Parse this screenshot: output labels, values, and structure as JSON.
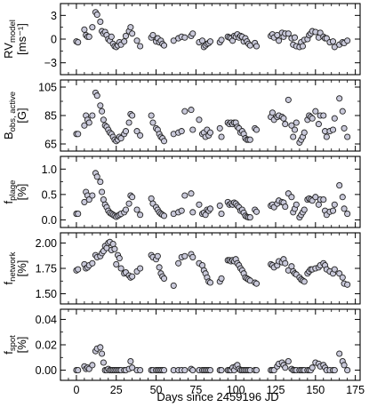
{
  "chart_data": [
    {
      "type": "scatter",
      "ylabel_main": "RV",
      "ylabel_sub": "model",
      "ylabel_unit": "[ms⁻¹]",
      "ylim": [
        -4.5,
        4.5
      ],
      "yticks": [
        -3,
        0,
        3
      ],
      "yticklabels": [
        "−3",
        "0",
        "3"
      ],
      "xlim": [
        -10,
        178
      ],
      "x": [
        0,
        1,
        5,
        6,
        7,
        8,
        10,
        12,
        13,
        15,
        16,
        17,
        18,
        19,
        20,
        21,
        22,
        23,
        24,
        25,
        26,
        27,
        28,
        30,
        31,
        33,
        34,
        35,
        38,
        40,
        47,
        48,
        50,
        51,
        52,
        53,
        54,
        55,
        61,
        64,
        66,
        68,
        72,
        73,
        77,
        79,
        80,
        81,
        82,
        83,
        84,
        90,
        91,
        95,
        96,
        97,
        98,
        99,
        100,
        101,
        102,
        103,
        104,
        105,
        106,
        107,
        108,
        109,
        112,
        113,
        122,
        123,
        124,
        126,
        127,
        129,
        130,
        131,
        133,
        135,
        136,
        137,
        138,
        140,
        141,
        142,
        143,
        145,
        146,
        147,
        148,
        150,
        152,
        153,
        155,
        156,
        157,
        159,
        161,
        162,
        165,
        167,
        168,
        170
      ],
      "y": [
        -0.3,
        -0.4,
        1.2,
        0.5,
        0.3,
        0.3,
        1.5,
        3.4,
        3.1,
        2.2,
        1.0,
        0.7,
        0.9,
        0.5,
        0.0,
        -0.2,
        0.3,
        -0.6,
        -0.9,
        -1.0,
        -0.8,
        -0.4,
        -0.7,
        -0.3,
        0.4,
        1.0,
        1.5,
        0.7,
        -0.2,
        -0.9,
        0.2,
        0.5,
        -0.3,
        0.1,
        -0.4,
        -0.2,
        -0.6,
        -0.8,
        -0.2,
        0.1,
        0.3,
        0.2,
        0.4,
        0.7,
        -0.4,
        -0.2,
        -1.0,
        -0.8,
        -0.6,
        -0.5,
        -0.3,
        -0.4,
        -0.1,
        0.3,
        0.2,
        0.1,
        -0.2,
        0.4,
        0.3,
        0.6,
        0.2,
        0.4,
        0.3,
        -0.3,
        0.1,
        -0.3,
        -0.6,
        -0.8,
        -0.5,
        -0.9,
        0.4,
        0.6,
        0.2,
        0.5,
        -0.2,
        0.8,
        0.3,
        0.7,
        0.7,
        0.1,
        -0.7,
        0.2,
        -0.9,
        -1.0,
        -0.4,
        -0.9,
        -0.1,
        0.0,
        0.5,
        0.7,
        1.0,
        0.9,
        0.2,
        0.8,
        0.3,
        0.1,
        0.1,
        -0.4,
        -0.3,
        -1.0,
        -0.7,
        -0.4,
        -0.5,
        -0.2
      ]
    },
    {
      "type": "scatter",
      "ylabel_main": "B",
      "ylabel_sub": "obs, active",
      "ylabel_unit": "[G]",
      "ylim": [
        60,
        110
      ],
      "yticks": [
        65,
        85,
        105
      ],
      "yticklabels": [
        "65",
        "85",
        "105"
      ],
      "xlim": [
        -10,
        178
      ],
      "x": [
        0,
        1,
        5,
        6,
        7,
        8,
        10,
        12,
        13,
        15,
        16,
        17,
        18,
        19,
        20,
        21,
        22,
        23,
        24,
        25,
        26,
        27,
        28,
        30,
        31,
        33,
        34,
        35,
        38,
        40,
        47,
        48,
        50,
        51,
        52,
        53,
        54,
        55,
        61,
        64,
        66,
        68,
        72,
        73,
        77,
        79,
        80,
        81,
        82,
        83,
        84,
        90,
        91,
        95,
        96,
        97,
        98,
        99,
        100,
        101,
        102,
        103,
        104,
        105,
        106,
        107,
        108,
        109,
        112,
        113,
        122,
        123,
        124,
        126,
        127,
        129,
        130,
        131,
        133,
        135,
        136,
        137,
        138,
        140,
        141,
        142,
        143,
        145,
        146,
        147,
        148,
        150,
        152,
        153,
        155,
        156,
        157,
        159,
        161,
        162,
        165,
        167,
        168,
        170
      ],
      "y": [
        72,
        72,
        78,
        85,
        82,
        80,
        85,
        101,
        99,
        92,
        88,
        82,
        78,
        77,
        75,
        73,
        72,
        70,
        68,
        67,
        68,
        70,
        69,
        72,
        74,
        80,
        86,
        85,
        74,
        71,
        85,
        80,
        76,
        75,
        72,
        70,
        69,
        67,
        72,
        73,
        74,
        88,
        89,
        75,
        82,
        72,
        73,
        70,
        75,
        71,
        73,
        76,
        70,
        80,
        79,
        80,
        79,
        80,
        80,
        77,
        76,
        73,
        74,
        72,
        69,
        68,
        68,
        68,
        76,
        75,
        84,
        87,
        82,
        84,
        85,
        84,
        83,
        79,
        96,
        78,
        70,
        75,
        80,
        66,
        68,
        70,
        73,
        82,
        85,
        84,
        83,
        88,
        79,
        85,
        85,
        74,
        70,
        74,
        75,
        83,
        97,
        88,
        76,
        70
      ]
    },
    {
      "type": "scatter",
      "ylabel_main": "f",
      "ylabel_sub": "plage",
      "ylabel_unit": "[%]",
      "ylim": [
        -0.15,
        1.25
      ],
      "yticks": [
        0.0,
        0.5,
        1.0
      ],
      "yticklabels": [
        "0.0",
        "0.5",
        "1.0"
      ],
      "xlim": [
        -10,
        178
      ],
      "x": [
        0,
        1,
        5,
        6,
        7,
        8,
        10,
        12,
        13,
        15,
        16,
        17,
        18,
        19,
        20,
        21,
        22,
        23,
        24,
        25,
        26,
        27,
        28,
        30,
        31,
        33,
        34,
        35,
        38,
        40,
        47,
        48,
        50,
        51,
        52,
        53,
        54,
        55,
        61,
        64,
        66,
        68,
        72,
        73,
        77,
        79,
        80,
        81,
        82,
        83,
        84,
        90,
        91,
        95,
        96,
        97,
        98,
        99,
        100,
        101,
        102,
        103,
        104,
        105,
        106,
        107,
        108,
        109,
        112,
        113,
        122,
        123,
        124,
        126,
        127,
        129,
        130,
        131,
        133,
        135,
        136,
        137,
        138,
        140,
        141,
        142,
        143,
        145,
        146,
        147,
        148,
        150,
        152,
        153,
        155,
        156,
        157,
        159,
        161,
        162,
        165,
        167,
        168,
        170
      ],
      "y": [
        0.12,
        0.12,
        0.35,
        0.55,
        0.48,
        0.4,
        0.48,
        0.92,
        0.85,
        0.75,
        0.55,
        0.4,
        0.3,
        0.25,
        0.18,
        0.14,
        0.12,
        0.1,
        0.08,
        0.06,
        0.08,
        0.1,
        0.12,
        0.15,
        0.2,
        0.32,
        0.48,
        0.45,
        0.2,
        0.1,
        0.42,
        0.32,
        0.25,
        0.2,
        0.15,
        0.12,
        0.1,
        0.08,
        0.12,
        0.15,
        0.18,
        0.48,
        0.52,
        0.15,
        0.3,
        0.12,
        0.14,
        0.1,
        0.2,
        0.18,
        0.22,
        0.28,
        0.12,
        0.35,
        0.3,
        0.32,
        0.3,
        0.34,
        0.32,
        0.28,
        0.25,
        0.18,
        0.2,
        0.14,
        0.08,
        0.06,
        0.05,
        0.05,
        0.2,
        0.16,
        0.28,
        0.3,
        0.25,
        0.32,
        0.38,
        0.35,
        0.34,
        0.26,
        0.52,
        0.45,
        0.15,
        0.22,
        0.3,
        0.05,
        0.1,
        0.15,
        0.2,
        0.4,
        0.42,
        0.4,
        0.38,
        0.45,
        0.3,
        0.4,
        0.4,
        0.18,
        0.1,
        0.16,
        0.18,
        0.3,
        0.68,
        0.45,
        0.22,
        0.12
      ]
    },
    {
      "type": "scatter",
      "ylabel_main": "f",
      "ylabel_sub": "network",
      "ylabel_unit": "[%]",
      "ylim": [
        1.4,
        2.1
      ],
      "yticks": [
        1.5,
        1.75,
        2.0
      ],
      "yticklabels": [
        "1.50",
        "1.75",
        "2.00"
      ],
      "xlim": [
        -10,
        178
      ],
      "x": [
        0,
        1,
        5,
        6,
        7,
        8,
        10,
        12,
        13,
        15,
        16,
        17,
        18,
        19,
        20,
        21,
        22,
        23,
        24,
        25,
        26,
        27,
        28,
        30,
        31,
        33,
        34,
        35,
        38,
        40,
        47,
        48,
        50,
        51,
        52,
        53,
        54,
        55,
        61,
        64,
        66,
        68,
        72,
        73,
        77,
        79,
        80,
        81,
        82,
        83,
        84,
        90,
        91,
        95,
        96,
        97,
        98,
        99,
        100,
        101,
        102,
        103,
        104,
        105,
        106,
        107,
        108,
        109,
        112,
        113,
        122,
        123,
        124,
        126,
        127,
        129,
        130,
        131,
        133,
        135,
        136,
        137,
        138,
        140,
        141,
        142,
        143,
        145,
        146,
        147,
        148,
        150,
        152,
        153,
        155,
        156,
        157,
        159,
        161,
        162,
        165,
        167,
        168,
        170
      ],
      "y": [
        1.73,
        1.74,
        1.79,
        1.75,
        1.76,
        1.78,
        1.8,
        1.88,
        1.86,
        1.87,
        1.9,
        1.92,
        1.97,
        1.95,
        2.0,
        2.01,
        1.93,
        1.99,
        1.94,
        1.79,
        1.88,
        1.85,
        1.75,
        1.7,
        1.71,
        1.68,
        1.66,
        1.67,
        1.72,
        1.75,
        1.88,
        1.86,
        1.84,
        1.87,
        1.76,
        1.7,
        1.67,
        1.65,
        1.58,
        1.8,
        1.86,
        1.87,
        1.89,
        1.86,
        1.8,
        1.78,
        1.73,
        1.7,
        1.66,
        1.62,
        1.61,
        1.62,
        1.65,
        1.83,
        1.83,
        1.82,
        1.83,
        1.82,
        1.84,
        1.8,
        1.78,
        1.75,
        1.73,
        1.7,
        1.66,
        1.65,
        1.64,
        1.63,
        1.61,
        1.6,
        1.79,
        1.78,
        1.76,
        1.78,
        1.82,
        1.81,
        1.84,
        1.8,
        1.73,
        1.77,
        1.72,
        1.7,
        1.69,
        1.66,
        1.64,
        1.63,
        1.62,
        1.7,
        1.72,
        1.74,
        1.74,
        1.75,
        1.76,
        1.78,
        1.8,
        1.78,
        1.74,
        1.72,
        1.7,
        1.74,
        1.7,
        1.66,
        1.6,
        1.59
      ]
    },
    {
      "type": "scatter",
      "ylabel_main": "f",
      "ylabel_sub": "spot",
      "ylabel_unit": "[%]",
      "ylim": [
        -0.008,
        0.048
      ],
      "yticks": [
        0.0,
        0.02,
        0.04
      ],
      "yticklabels": [
        "0.00",
        "0.02",
        "0.04"
      ],
      "xlim": [
        -10,
        178
      ],
      "x": [
        0,
        1,
        5,
        6,
        7,
        8,
        10,
        12,
        13,
        15,
        16,
        17,
        18,
        19,
        20,
        21,
        22,
        23,
        24,
        25,
        26,
        27,
        28,
        30,
        31,
        33,
        34,
        35,
        38,
        40,
        47,
        48,
        50,
        51,
        52,
        53,
        54,
        55,
        61,
        64,
        66,
        68,
        72,
        73,
        77,
        79,
        80,
        81,
        82,
        83,
        84,
        90,
        91,
        95,
        96,
        97,
        98,
        99,
        100,
        101,
        102,
        103,
        104,
        105,
        106,
        107,
        108,
        109,
        112,
        113,
        122,
        123,
        124,
        126,
        127,
        129,
        130,
        131,
        133,
        135,
        136,
        137,
        138,
        140,
        141,
        142,
        143,
        145,
        146,
        147,
        148,
        150,
        152,
        153,
        155,
        156,
        157,
        159,
        161,
        162,
        165,
        167,
        168,
        170
      ],
      "y": [
        0.0,
        0.0,
        0.003,
        0.001,
        0.002,
        0.001,
        0.004,
        0.015,
        0.017,
        0.018,
        0.013,
        0.006,
        0.0,
        0.0,
        0.001,
        0.0,
        0.0,
        0.0,
        0.0,
        0.0,
        0.0,
        0.0,
        0.0,
        0.0,
        0.0,
        0.001,
        0.007,
        0.002,
        0.0,
        0.0,
        0.0,
        0.0,
        0.0,
        0.0,
        0.0,
        0.0,
        0.0,
        0.0,
        0.0,
        0.0,
        0.0,
        0.0,
        0.001,
        0.0,
        0.0,
        0.0,
        0.0,
        0.0,
        0.0,
        0.0,
        0.0,
        0.0,
        0.0,
        0.0,
        0.0,
        0.0,
        0.002,
        0.0,
        0.003,
        0.004,
        0.001,
        0.0,
        0.0,
        0.0,
        0.0,
        0.0,
        0.0,
        0.0,
        0.0,
        0.0,
        0.0,
        0.0,
        0.0,
        0.003,
        0.005,
        0.006,
        0.004,
        0.002,
        0.007,
        0.001,
        0.0,
        0.0,
        0.0,
        0.0,
        0.0,
        0.0,
        0.0,
        0.0,
        0.0,
        0.0,
        0.002,
        0.006,
        0.005,
        0.003,
        0.004,
        0.002,
        0.0,
        0.0,
        0.0,
        0.0,
        0.013,
        0.007,
        0.004,
        0.0
      ]
    }
  ],
  "x_axis": {
    "label": "Days since 2459196 JD",
    "ticks": [
      0,
      25,
      50,
      75,
      100,
      125,
      150,
      175
    ],
    "ticklabels": [
      "0",
      "25",
      "50",
      "75",
      "100",
      "125",
      "150",
      "175"
    ]
  },
  "colors": {
    "marker_fill": "#c9c9da",
    "marker_edge": "#222222",
    "axes": "#000000"
  }
}
